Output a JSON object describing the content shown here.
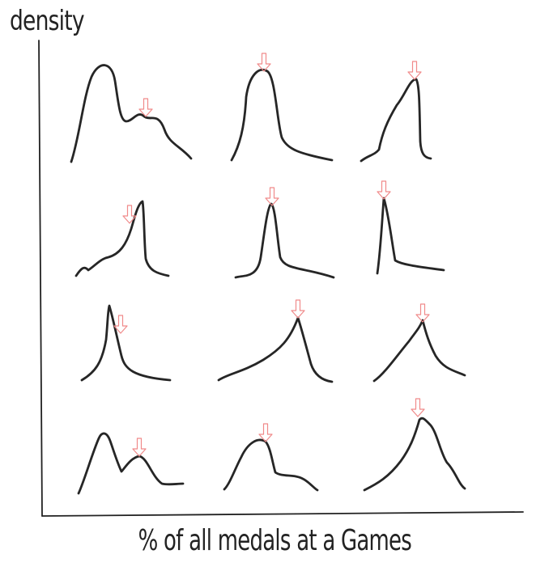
{
  "labels": {
    "y_axis": "density",
    "x_axis": "% of all medals at a Games"
  },
  "colors": {
    "curve": "#262626",
    "marker": "#f08a8a",
    "axis": "#222222"
  },
  "panels": [
    {
      "id": "r1c1",
      "shape": "bimodal",
      "marker": "secondary-peak"
    },
    {
      "id": "r1c2",
      "shape": "peak-right-tail",
      "marker": "peak"
    },
    {
      "id": "r1c3",
      "shape": "left-tail-sharp-drop",
      "marker": "peak"
    },
    {
      "id": "r2c1",
      "shape": "left-tail-sharp-drop",
      "marker": "shoulder-before-peak"
    },
    {
      "id": "r2c2",
      "shape": "narrow-peak",
      "marker": "peak"
    },
    {
      "id": "r2c3",
      "shape": "spike-at-left-long-tail",
      "marker": "peak"
    },
    {
      "id": "r3c1",
      "shape": "spike-right-tail",
      "marker": "right-of-peak"
    },
    {
      "id": "r3c2",
      "shape": "long-left-tail-sharp-peak",
      "marker": "peak"
    },
    {
      "id": "r3c3",
      "shape": "symmetric-cusp",
      "marker": "peak"
    },
    {
      "id": "r4c1",
      "shape": "bimodal",
      "marker": "secondary-peak"
    },
    {
      "id": "r4c2",
      "shape": "peak-with-shoulder",
      "marker": "peak"
    },
    {
      "id": "r4c3",
      "shape": "broad-peak",
      "marker": "peak"
    }
  ]
}
